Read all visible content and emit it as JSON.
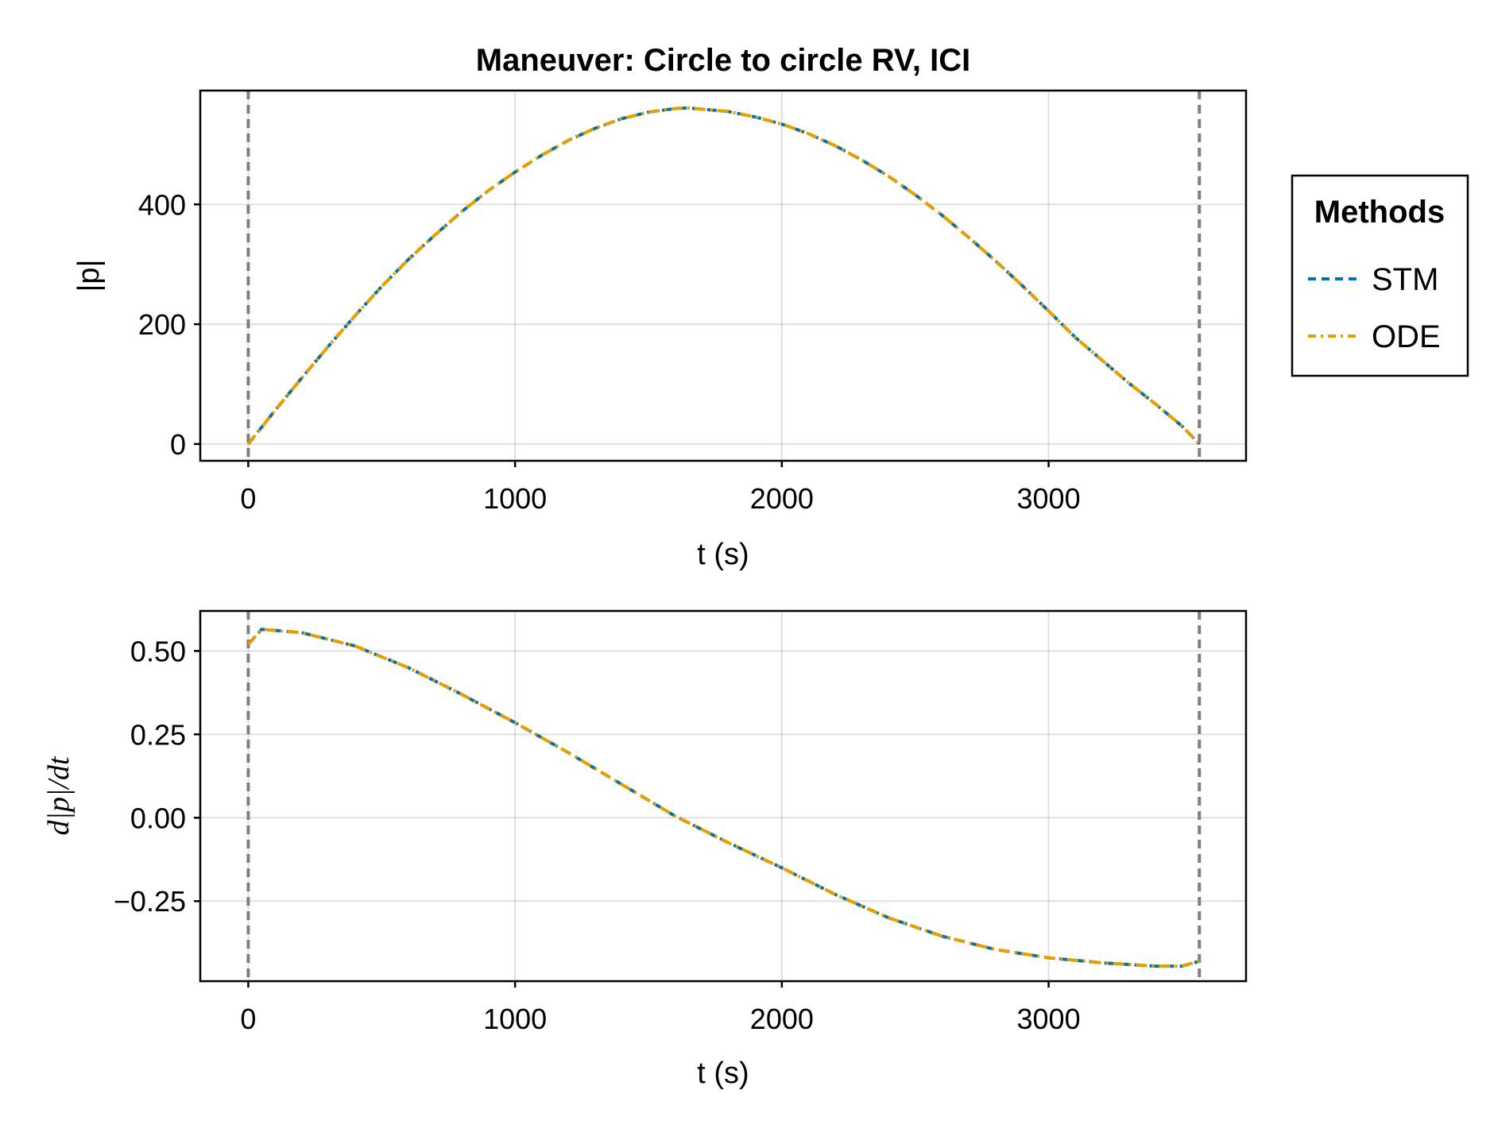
{
  "chart_data": [
    {
      "type": "line",
      "title": "Maneuver: Circle to circle RV, ICI",
      "xlabel": "t (s)",
      "ylabel": "|p|",
      "xlim": [
        -180,
        3740
      ],
      "ylim": [
        -28,
        590
      ],
      "xticks": [
        0,
        1000,
        2000,
        3000
      ],
      "xtick_labels": [
        "0",
        "1000",
        "2000",
        "3000"
      ],
      "yticks": [
        0,
        200,
        400
      ],
      "ytick_labels": [
        "0",
        "200",
        "400"
      ],
      "grid": true,
      "vlines": [
        0,
        3565
      ],
      "x": [
        0,
        100,
        200,
        300,
        400,
        500,
        600,
        700,
        800,
        900,
        1000,
        1100,
        1200,
        1300,
        1400,
        1500,
        1600,
        1650,
        1700,
        1800,
        1900,
        2000,
        2100,
        2200,
        2300,
        2400,
        2500,
        2600,
        2700,
        2800,
        2900,
        3000,
        3100,
        3200,
        3300,
        3400,
        3500,
        3565
      ],
      "series": [
        {
          "name": "STM",
          "color": "#0072b2",
          "style": "dashed",
          "values": [
            0,
            56,
            110,
            163,
            214,
            263,
            308,
            349,
            388,
            423,
            454,
            482,
            507,
            527,
            543,
            554,
            560,
            561,
            559,
            555,
            546,
            534,
            518,
            498,
            474,
            447,
            416,
            382,
            345,
            306,
            265,
            222,
            178,
            140,
            102,
            67,
            30,
            0
          ]
        },
        {
          "name": "ODE",
          "color": "#e69f00",
          "style": "dashdot",
          "values": [
            0,
            56,
            110,
            163,
            214,
            263,
            308,
            349,
            388,
            423,
            454,
            482,
            507,
            527,
            543,
            554,
            560,
            561,
            559,
            555,
            546,
            534,
            518,
            498,
            474,
            447,
            416,
            382,
            345,
            306,
            265,
            222,
            178,
            140,
            102,
            67,
            30,
            0
          ]
        }
      ]
    },
    {
      "type": "line",
      "title": "",
      "xlabel": "t (s)",
      "ylabel": "d|p|/dt",
      "xlim": [
        -180,
        3740
      ],
      "ylim": [
        -0.49,
        0.62
      ],
      "xticks": [
        0,
        1000,
        2000,
        3000
      ],
      "xtick_labels": [
        "0",
        "1000",
        "2000",
        "3000"
      ],
      "yticks": [
        -0.25,
        0,
        0.25,
        0.5
      ],
      "ytick_labels": [
        "−0.25",
        "0.00",
        "0.25",
        "0.50"
      ],
      "grid": true,
      "vlines": [
        0,
        3565
      ],
      "x": [
        0,
        50,
        200,
        400,
        600,
        800,
        1000,
        1200,
        1400,
        1600,
        1800,
        2000,
        2200,
        2400,
        2600,
        2800,
        3000,
        3200,
        3400,
        3500,
        3565
      ],
      "series": [
        {
          "name": "STM",
          "color": "#0072b2",
          "style": "dashed",
          "values": [
            0.52,
            0.565,
            0.555,
            0.515,
            0.45,
            0.37,
            0.285,
            0.195,
            0.1,
            0.005,
            -0.075,
            -0.15,
            -0.23,
            -0.3,
            -0.355,
            -0.395,
            -0.42,
            -0.435,
            -0.445,
            -0.445,
            -0.43
          ]
        },
        {
          "name": "ODE",
          "color": "#e69f00",
          "style": "dashdot",
          "values": [
            0.52,
            0.565,
            0.555,
            0.515,
            0.45,
            0.37,
            0.285,
            0.195,
            0.1,
            0.005,
            -0.075,
            -0.15,
            -0.23,
            -0.3,
            -0.355,
            -0.395,
            -0.42,
            -0.435,
            -0.445,
            -0.445,
            -0.43
          ]
        }
      ]
    }
  ],
  "legend": {
    "title": "Methods",
    "placement": "right",
    "items": [
      {
        "label": "STM",
        "color": "#0072b2",
        "style": "dashed"
      },
      {
        "label": "ODE",
        "color": "#e69f00",
        "style": "dashdot"
      }
    ]
  }
}
